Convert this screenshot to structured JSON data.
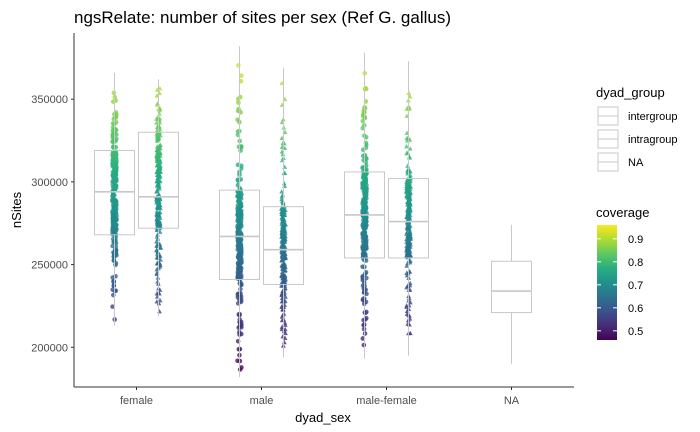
{
  "chart_data": {
    "type": "boxplot",
    "title": "ngsRelate: number of sites per sex (Ref G. gallus)",
    "xlabel": "dyad_sex",
    "ylabel": "nSites",
    "categories": [
      "female",
      "male",
      "male-female",
      "NA"
    ],
    "yticks": [
      200000,
      250000,
      300000,
      350000
    ],
    "ytick_labels": [
      "200000",
      "250000",
      "300000",
      "350000"
    ],
    "ylim": [
      176000,
      390000
    ],
    "grid": false,
    "boxes": [
      {
        "category": "female",
        "group": "intergroup",
        "q1": 268000,
        "median": 294000,
        "q3": 319000,
        "whisker_low": 213000,
        "whisker_high": 366000
      },
      {
        "category": "female",
        "group": "intragroup",
        "q1": 272000,
        "median": 291000,
        "q3": 330000,
        "whisker_low": 219000,
        "whisker_high": 362000
      },
      {
        "category": "male",
        "group": "intergroup",
        "q1": 241000,
        "median": 267000,
        "q3": 295000,
        "whisker_low": 182000,
        "whisker_high": 382000
      },
      {
        "category": "male",
        "group": "intragroup",
        "q1": 238000,
        "median": 259000,
        "q3": 285000,
        "whisker_low": 194000,
        "whisker_high": 369000
      },
      {
        "category": "male-female",
        "group": "intergroup",
        "q1": 254000,
        "median": 280000,
        "q3": 306000,
        "whisker_low": 193000,
        "whisker_high": 378000
      },
      {
        "category": "male-female",
        "group": "intragroup",
        "q1": 254000,
        "median": 276000,
        "q3": 302000,
        "whisker_low": 195000,
        "whisker_high": 373000
      },
      {
        "category": "NA",
        "group": "NA",
        "q1": 221000,
        "median": 234000,
        "q3": 252000,
        "whisker_low": 190000,
        "whisker_high": 274000
      }
    ],
    "legend_group": {
      "title": "dyad_group",
      "entries": [
        "intergroup",
        "intragroup",
        "NA"
      ],
      "placement": "right"
    },
    "legend_color": {
      "title": "coverage",
      "ticks": [
        0.5,
        0.6,
        0.7,
        0.8,
        0.9
      ],
      "tick_labels": [
        "0.5",
        "0.6",
        "0.7",
        "0.8",
        "0.9"
      ],
      "range": [
        0.46,
        0.96
      ],
      "palette": [
        "#440154",
        "#472d7b",
        "#3b528b",
        "#2c728e",
        "#21918c",
        "#28ae80",
        "#5ec962",
        "#addc30",
        "#fde725"
      ],
      "placement": "right"
    },
    "colors": {
      "box_stroke": "#c8c8c8",
      "axis": "#333333"
    }
  }
}
